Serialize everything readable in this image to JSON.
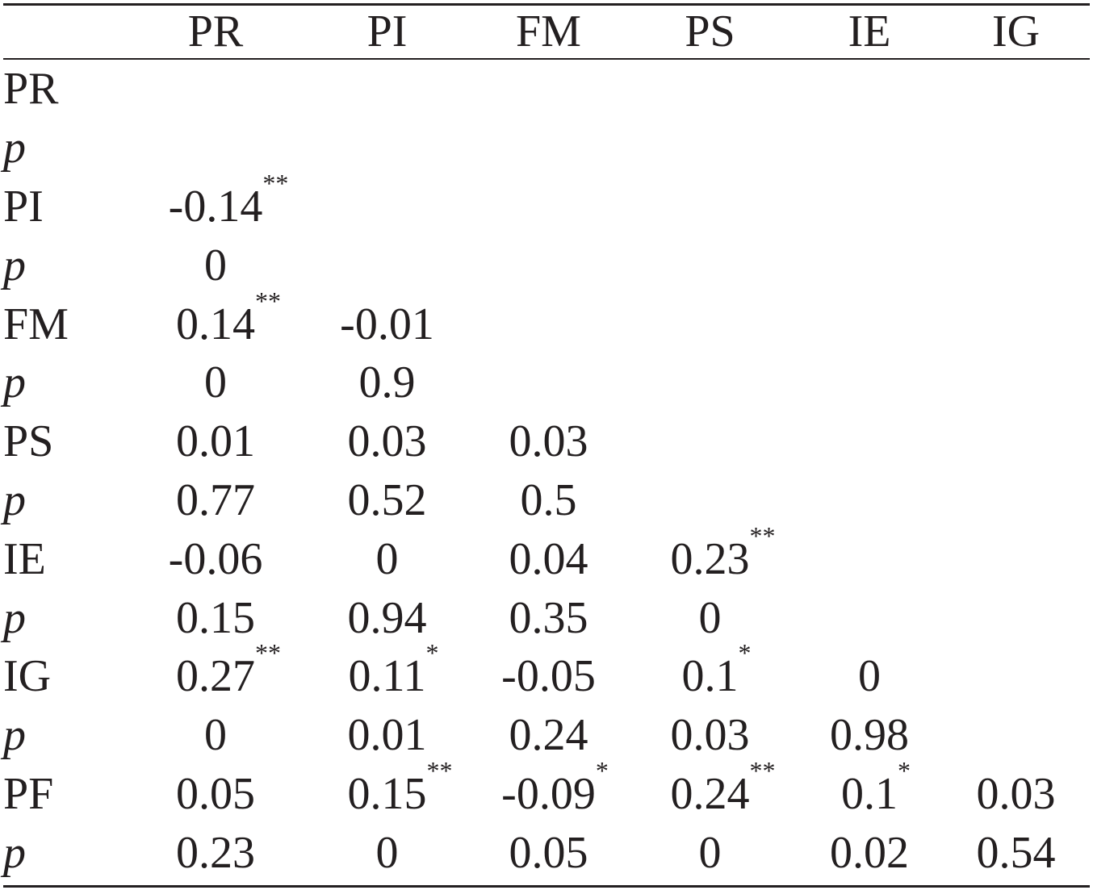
{
  "header": [
    "",
    "PR",
    "PI",
    "FM",
    "PS",
    "IE",
    "IG"
  ],
  "rows": [
    {
      "label": "PR",
      "italic": false,
      "cells": [
        [
          "",
          ""
        ],
        [
          "",
          ""
        ],
        [
          "",
          ""
        ],
        [
          "",
          ""
        ],
        [
          "",
          ""
        ],
        [
          "",
          ""
        ]
      ]
    },
    {
      "label": "p",
      "italic": true,
      "cells": [
        [
          "",
          ""
        ],
        [
          "",
          ""
        ],
        [
          "",
          ""
        ],
        [
          "",
          ""
        ],
        [
          "",
          ""
        ],
        [
          "",
          ""
        ]
      ]
    },
    {
      "label": "PI",
      "italic": false,
      "cells": [
        [
          "-0.14",
          "**"
        ],
        [
          "",
          ""
        ],
        [
          "",
          ""
        ],
        [
          "",
          ""
        ],
        [
          "",
          ""
        ],
        [
          "",
          ""
        ]
      ]
    },
    {
      "label": "p",
      "italic": true,
      "cells": [
        [
          "0",
          ""
        ],
        [
          "",
          ""
        ],
        [
          "",
          ""
        ],
        [
          "",
          ""
        ],
        [
          "",
          ""
        ],
        [
          "",
          ""
        ]
      ]
    },
    {
      "label": "FM",
      "italic": false,
      "cells": [
        [
          "0.14",
          "**"
        ],
        [
          "-0.01",
          ""
        ],
        [
          "",
          ""
        ],
        [
          "",
          ""
        ],
        [
          "",
          ""
        ],
        [
          "",
          ""
        ]
      ]
    },
    {
      "label": "p",
      "italic": true,
      "cells": [
        [
          "0",
          ""
        ],
        [
          "0.9",
          ""
        ],
        [
          "",
          ""
        ],
        [
          "",
          ""
        ],
        [
          "",
          ""
        ],
        [
          "",
          ""
        ]
      ]
    },
    {
      "label": "PS",
      "italic": false,
      "cells": [
        [
          "0.01",
          ""
        ],
        [
          "0.03",
          ""
        ],
        [
          "0.03",
          ""
        ],
        [
          "",
          ""
        ],
        [
          "",
          ""
        ],
        [
          "",
          ""
        ]
      ]
    },
    {
      "label": "p",
      "italic": true,
      "cells": [
        [
          "0.77",
          ""
        ],
        [
          "0.52",
          ""
        ],
        [
          "0.5",
          ""
        ],
        [
          "",
          ""
        ],
        [
          "",
          ""
        ],
        [
          "",
          ""
        ]
      ]
    },
    {
      "label": "IE",
      "italic": false,
      "cells": [
        [
          "-0.06",
          ""
        ],
        [
          "0",
          ""
        ],
        [
          "0.04",
          ""
        ],
        [
          "0.23",
          "**"
        ],
        [
          "",
          ""
        ],
        [
          "",
          ""
        ]
      ]
    },
    {
      "label": "p",
      "italic": true,
      "cells": [
        [
          "0.15",
          ""
        ],
        [
          "0.94",
          ""
        ],
        [
          "0.35",
          ""
        ],
        [
          "0",
          ""
        ],
        [
          "",
          ""
        ],
        [
          "",
          ""
        ]
      ]
    },
    {
      "label": "IG",
      "italic": false,
      "cells": [
        [
          "0.27",
          "**"
        ],
        [
          "0.11",
          "*"
        ],
        [
          "-0.05",
          ""
        ],
        [
          "0.1",
          "*"
        ],
        [
          "0",
          ""
        ],
        [
          "",
          ""
        ]
      ]
    },
    {
      "label": "p",
      "italic": true,
      "cells": [
        [
          "0",
          ""
        ],
        [
          "0.01",
          ""
        ],
        [
          "0.24",
          ""
        ],
        [
          "0.03",
          ""
        ],
        [
          "0.98",
          ""
        ],
        [
          "",
          ""
        ]
      ]
    },
    {
      "label": "PF",
      "italic": false,
      "cells": [
        [
          "0.05",
          ""
        ],
        [
          "0.15",
          "**"
        ],
        [
          "-0.09",
          "*"
        ],
        [
          "0.24",
          "**"
        ],
        [
          "0.1",
          "*"
        ],
        [
          "0.03",
          ""
        ]
      ]
    },
    {
      "label": "p",
      "italic": true,
      "cells": [
        [
          "0.23",
          ""
        ],
        [
          "0",
          ""
        ],
        [
          "0.05",
          ""
        ],
        [
          "0",
          ""
        ],
        [
          "0.02",
          ""
        ],
        [
          "0.54",
          ""
        ]
      ]
    }
  ]
}
